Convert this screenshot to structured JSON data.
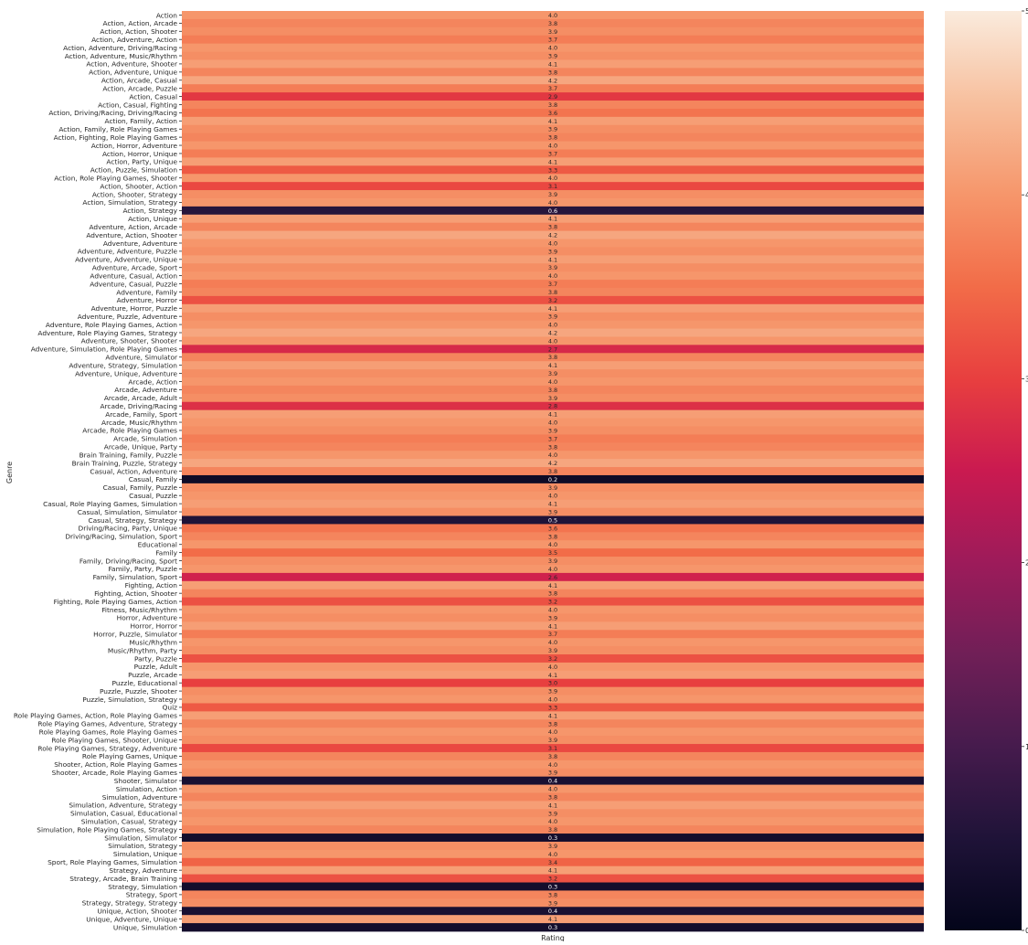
{
  "chart_data": {
    "type": "heatmap",
    "xlabel": "Rating",
    "ylabel": "Genre",
    "x_categories": [
      ""
    ],
    "colorbar": {
      "vmin": 0,
      "vmax": 5,
      "ticks": [
        0,
        1,
        2,
        3,
        4,
        5
      ],
      "colormap": "rocket"
    },
    "labeled_genres": [
      "Action",
      "Action, Action, Arcade",
      "Action, Action, Shooter",
      "Action, Adventure, Action",
      "Action, Adventure, Driving/Racing",
      "Action, Adventure, Music/Rhythm",
      "Action, Adventure, Shooter",
      "Action, Adventure, Unique",
      "Action, Arcade, Casual",
      "Action, Arcade, Puzzle",
      "Action, Casual",
      "Action, Casual, Fighting",
      "Action, Driving/Racing, Driving/Racing",
      "Action, Family, Action",
      "Action, Family, Role Playing Games",
      "Action, Fighting, Role Playing Games",
      "Action, Horror, Adventure",
      "Action, Horror, Unique",
      "Action, Party, Unique",
      "Action, Puzzle, Simulation",
      "Action, Role Playing Games, Shooter",
      "Action, Shooter, Action",
      "Action, Shooter, Strategy",
      "Action, Simulation, Strategy",
      "Action, Strategy",
      "Action, Unique",
      "Adventure, Action, Arcade",
      "Adventure, Action, Shooter",
      "Adventure, Adventure",
      "Adventure, Adventure, Puzzle",
      "Adventure, Adventure, Unique",
      "Adventure, Arcade, Sport",
      "Adventure, Casual, Action",
      "Adventure, Casual, Puzzle",
      "Adventure, Family",
      "Adventure, Horror",
      "Adventure, Horror, Puzzle",
      "Adventure, Puzzle, Adventure",
      "Adventure, Role Playing Games, Action",
      "Adventure, Role Playing Games, Strategy",
      "Adventure, Shooter, Shooter",
      "Adventure, Simulation, Role Playing Games",
      "Adventure, Simulator",
      "Adventure, Strategy, Simulation",
      "Adventure, Unique, Adventure",
      "Arcade, Action",
      "Arcade, Adventure",
      "Arcade, Arcade, Adult",
      "Arcade, Driving/Racing",
      "Arcade, Family, Sport",
      "Arcade, Music/Rhythm",
      "Arcade, Role Playing Games",
      "Arcade, Simulation",
      "Arcade, Unique, Party",
      "Brain Training, Family, Puzzle",
      "Brain Training, Puzzle, Strategy",
      "Casual, Action, Adventure",
      "Casual, Family",
      "Casual, Family, Puzzle",
      "Casual, Puzzle",
      "Casual, Role Playing Games, Simulation",
      "Casual, Simulation, Simulator",
      "Casual, Strategy, Strategy",
      "Driving/Racing, Party, Unique",
      "Driving/Racing, Simulation, Sport",
      "Educational",
      "Family",
      "Family, Driving/Racing, Sport",
      "Family, Party, Puzzle",
      "Family, Simulation, Sport",
      "Fighting, Action",
      "Fighting, Action, Shooter",
      "Fighting, Role Playing Games, Action",
      "Fitness, Music/Rhythm",
      "Horror, Adventure",
      "Horror, Horror",
      "Horror, Puzzle, Simulator",
      "Music/Rhythm",
      "Music/Rhythm, Party",
      "Party, Puzzle",
      "Puzzle, Adult",
      "Puzzle, Arcade",
      "Puzzle, Educational",
      "Puzzle, Puzzle, Shooter",
      "Puzzle, Simulation, Strategy",
      "Quiz",
      "Role Playing Games, Action, Role Playing Games",
      "Role Playing Games, Adventure, Strategy",
      "Role Playing Games, Role Playing Games",
      "Role Playing Games, Shooter, Unique",
      "Role Playing Games, Strategy, Adventure",
      "Role Playing Games, Unique",
      "Shooter, Action, Role Playing Games",
      "Shooter, Arcade, Role Playing Games",
      "Shooter, Simulator",
      "Simulation, Action",
      "Simulation, Adventure",
      "Simulation, Adventure, Strategy",
      "Simulation, Casual, Educational",
      "Simulation, Casual, Strategy",
      "Simulation, Role Playing Games, Strategy",
      "Simulation, Simulator",
      "Simulation, Strategy",
      "Simulation, Unique",
      "Sport, Role Playing Games, Simulation",
      "Strategy, Adventure",
      "Strategy, Arcade, Brain Training",
      "Strategy, Simulation",
      "Strategy, Sport",
      "Strategy, Strategy, Strategy",
      "Unique, Action, Shooter",
      "Unique, Adventure, Unique",
      "Unique, Simulation"
    ],
    "labeled_values": [
      4.0,
      3.8,
      3.9,
      3.7,
      4.0,
      3.9,
      4.1,
      3.8,
      4.2,
      3.7,
      2.9,
      3.8,
      3.6,
      4.1,
      3.9,
      3.8,
      4.0,
      3.7,
      4.1,
      3.3,
      4.0,
      3.1,
      3.9,
      4.0,
      0.6,
      4.1,
      3.8,
      4.2,
      4.0,
      3.9,
      4.1,
      3.9,
      4.0,
      3.7,
      3.8,
      3.2,
      4.1,
      3.9,
      4.0,
      4.2,
      4.0,
      2.7,
      3.8,
      4.1,
      3.9,
      4.0,
      3.8,
      3.9,
      2.8,
      4.1,
      4.0,
      3.9,
      3.7,
      3.8,
      4.0,
      4.2,
      3.8,
      0.2,
      3.9,
      4.0,
      4.1,
      3.9,
      0.5,
      3.6,
      3.8,
      4.0,
      3.5,
      3.9,
      4.0,
      2.6,
      4.1,
      3.8,
      3.2,
      4.0,
      3.9,
      4.1,
      3.7,
      4.0,
      3.9,
      3.2,
      4.0,
      4.1,
      3.0,
      3.9,
      4.0,
      3.3,
      4.1,
      3.8,
      4.0,
      3.9,
      3.1,
      3.8,
      4.0,
      3.9,
      0.4,
      4.0,
      3.8,
      4.1,
      3.9,
      4.0,
      3.8,
      0.3,
      3.9,
      4.0,
      3.4,
      4.1,
      3.2,
      0.3,
      3.8,
      3.9,
      0.4,
      4.1,
      0.3
    ]
  }
}
